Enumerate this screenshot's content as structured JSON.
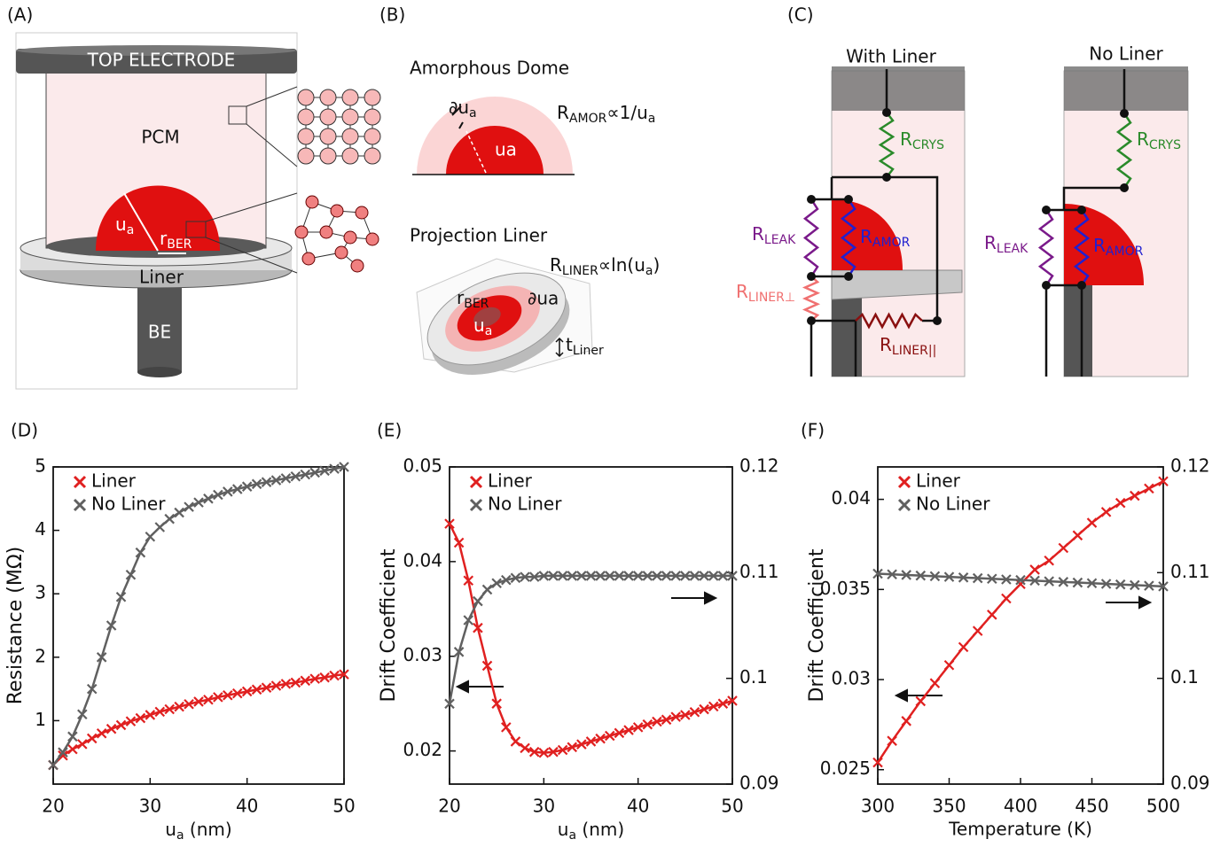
{
  "panel_labels": [
    "(A)",
    "(B)",
    "(C)",
    "(D)",
    "(E)",
    "(F)"
  ],
  "diagram_a": {
    "electrode": "TOP ELECTRODE",
    "pcm": "PCM",
    "ua": [
      "u",
      "a"
    ],
    "rber": [
      "r",
      "BER"
    ],
    "liner": "Liner",
    "be": "BE"
  },
  "diagram_b": {
    "title_top": "Amorphous Dome",
    "dua": [
      "∂u",
      "a"
    ],
    "ua": "ua",
    "r_amor": [
      "R",
      "AMOR",
      "∝1/u",
      "a"
    ],
    "title_bottom": "Projection Liner",
    "r_liner": [
      "R",
      "LINER",
      "∝ln(u",
      "a",
      ")"
    ],
    "rber": [
      "r",
      "BER"
    ],
    "dua2": "∂ua",
    "ua2": [
      "u",
      "a"
    ],
    "tliner": [
      "t",
      "Liner"
    ]
  },
  "diagram_c": {
    "with": {
      "title": "With Liner",
      "rcrys": [
        "R",
        "CRYS"
      ],
      "rleak": [
        "R",
        "LEAK"
      ],
      "ramor": [
        "R",
        "AMOR"
      ],
      "rlinerperp": [
        "R",
        "LINER⊥"
      ],
      "rlinerpar": [
        "R",
        "LINER||"
      ]
    },
    "without": {
      "title": "No Liner",
      "rcrys": [
        "R",
        "CRYS"
      ],
      "rleak": [
        "R",
        "LEAK"
      ],
      "ramor": [
        "R",
        "AMOR"
      ]
    }
  },
  "chart_data": [
    {
      "type": "line",
      "xlabel": {
        "main": "u",
        "sub": "a",
        "unit": " (nm)"
      },
      "ylabel": "Resistance (MΩ)",
      "x": [
        20,
        21,
        22,
        23,
        24,
        25,
        26,
        27,
        28,
        29,
        30,
        31,
        32,
        33,
        34,
        35,
        36,
        37,
        38,
        39,
        40,
        41,
        42,
        43,
        44,
        45,
        46,
        47,
        48,
        49,
        50
      ],
      "xlim": [
        20,
        50
      ],
      "xticks": [
        20,
        30,
        40,
        50
      ],
      "ylim": [
        0,
        5
      ],
      "yticks": [
        1,
        2,
        3,
        4,
        5
      ],
      "grid": false,
      "series": [
        {
          "name": "Liner",
          "color": "#e02020",
          "values": [
            0.3,
            0.45,
            0.55,
            0.63,
            0.72,
            0.8,
            0.87,
            0.93,
            0.99,
            1.04,
            1.09,
            1.14,
            1.18,
            1.22,
            1.26,
            1.3,
            1.33,
            1.37,
            1.4,
            1.43,
            1.46,
            1.49,
            1.52,
            1.55,
            1.58,
            1.6,
            1.63,
            1.66,
            1.68,
            1.71,
            1.73
          ]
        },
        {
          "name": "No Liner",
          "color": "#606060",
          "values": [
            0.3,
            0.5,
            0.75,
            1.1,
            1.5,
            2.0,
            2.5,
            2.95,
            3.3,
            3.65,
            3.9,
            4.05,
            4.18,
            4.28,
            4.37,
            4.44,
            4.5,
            4.56,
            4.61,
            4.65,
            4.69,
            4.73,
            4.76,
            4.79,
            4.82,
            4.85,
            4.88,
            4.91,
            4.94,
            4.97,
            5.0
          ]
        }
      ]
    },
    {
      "type": "line",
      "xlabel": {
        "main": "u",
        "sub": "a",
        "unit": " (nm)"
      },
      "ylabel": "Drift Coefficient",
      "x": [
        20,
        21,
        22,
        23,
        24,
        25,
        26,
        27,
        28,
        29,
        30,
        31,
        32,
        33,
        34,
        35,
        36,
        37,
        38,
        39,
        40,
        41,
        42,
        43,
        44,
        45,
        46,
        47,
        48,
        49,
        50
      ],
      "xlim": [
        20,
        50
      ],
      "xticks": [
        20,
        30,
        40,
        50
      ],
      "ylim": [
        0.0165,
        0.05
      ],
      "yticks": [
        0.02,
        0.03,
        0.04,
        0.05
      ],
      "y2lim": [
        0.09,
        0.12
      ],
      "y2ticks": [
        0.09,
        0.1,
        0.11,
        0.12
      ],
      "grid": false,
      "series": [
        {
          "name": "Liner",
          "color": "#e02020",
          "values": [
            0.044,
            0.042,
            0.038,
            0.033,
            0.029,
            0.025,
            0.0225,
            0.021,
            0.0203,
            0.0199,
            0.0198,
            0.0199,
            0.0201,
            0.0204,
            0.0207,
            0.021,
            0.0213,
            0.0216,
            0.0219,
            0.0222,
            0.0225,
            0.0228,
            0.0231,
            0.0233,
            0.0236,
            0.0238,
            0.0241,
            0.0244,
            0.0247,
            0.025,
            0.0253
          ]
        },
        {
          "name": "No Liner",
          "color": "#606060",
          "axis": "y2",
          "values": [
            0.0976,
            0.1025,
            0.1055,
            0.1073,
            0.1084,
            0.109,
            0.1093,
            0.1095,
            0.1096,
            0.1096,
            0.1097,
            0.1097,
            0.1097,
            0.1097,
            0.1097,
            0.1097,
            0.1097,
            0.1097,
            0.1097,
            0.1097,
            0.1097,
            0.1097,
            0.1097,
            0.1097,
            0.1097,
            0.1097,
            0.1097,
            0.1097,
            0.1097,
            0.1097,
            0.1097
          ]
        }
      ]
    },
    {
      "type": "line",
      "xlabel": "Temperature (K)",
      "ylabel": "Drift Coefficient",
      "x": [
        300,
        310,
        320,
        330,
        340,
        350,
        360,
        370,
        380,
        390,
        400,
        410,
        420,
        430,
        440,
        450,
        460,
        470,
        480,
        490,
        500
      ],
      "xlim": [
        300,
        500
      ],
      "xticks": [
        300,
        350,
        400,
        450,
        500
      ],
      "ylim": [
        0.0242,
        0.0418
      ],
      "yticks": [
        0.025,
        0.03,
        0.035,
        0.04
      ],
      "y2lim": [
        0.09,
        0.12
      ],
      "y2ticks": [
        0.09,
        0.1,
        0.11,
        0.12
      ],
      "grid": false,
      "series": [
        {
          "name": "Liner",
          "color": "#e02020",
          "values": [
            0.0254,
            0.0266,
            0.0277,
            0.0288,
            0.0298,
            0.0308,
            0.0318,
            0.0327,
            0.0336,
            0.0345,
            0.0353,
            0.0361,
            0.0366,
            0.0373,
            0.038,
            0.0387,
            0.0393,
            0.0398,
            0.0402,
            0.0406,
            0.041
          ]
        },
        {
          "name": "No Liner",
          "color": "#606060",
          "axis": "y2",
          "values": [
            0.1099,
            0.10984,
            0.10978,
            0.10972,
            0.10966,
            0.1096,
            0.10954,
            0.10948,
            0.10942,
            0.10936,
            0.1093,
            0.10924,
            0.10918,
            0.10912,
            0.10906,
            0.109,
            0.10894,
            0.10888,
            0.10882,
            0.10876,
            0.1087
          ]
        }
      ]
    }
  ]
}
